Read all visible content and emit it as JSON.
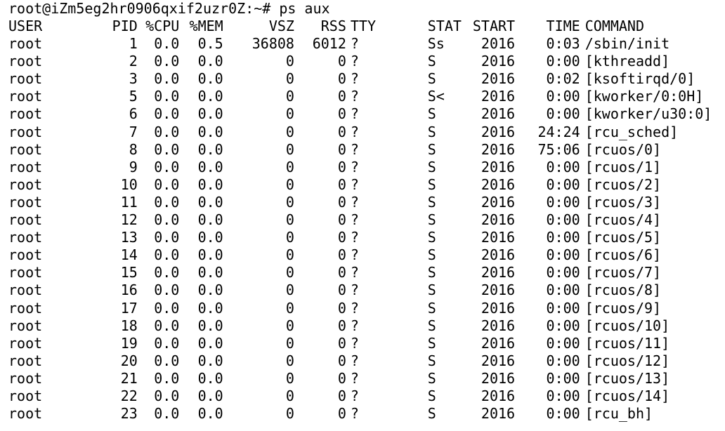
{
  "prompt": "root@iZm5eg2hr0906qxif2uzr0Z:~# ps aux",
  "columns": [
    "USER",
    "PID",
    "%CPU",
    "%MEM",
    "VSZ",
    "RSS",
    "TTY",
    "STAT",
    "START",
    "TIME",
    "COMMAND"
  ],
  "processes": [
    {
      "user": "root",
      "pid": "1",
      "cpu": "0.0",
      "mem": "0.5",
      "vsz": "36808",
      "rss": "6012",
      "tty": "?",
      "stat": "Ss",
      "start": "2016",
      "time": "0:03",
      "command": "/sbin/init"
    },
    {
      "user": "root",
      "pid": "2",
      "cpu": "0.0",
      "mem": "0.0",
      "vsz": "0",
      "rss": "0",
      "tty": "?",
      "stat": "S",
      "start": "2016",
      "time": "0:00",
      "command": "[kthreadd]"
    },
    {
      "user": "root",
      "pid": "3",
      "cpu": "0.0",
      "mem": "0.0",
      "vsz": "0",
      "rss": "0",
      "tty": "?",
      "stat": "S",
      "start": "2016",
      "time": "0:02",
      "command": "[ksoftirqd/0]"
    },
    {
      "user": "root",
      "pid": "5",
      "cpu": "0.0",
      "mem": "0.0",
      "vsz": "0",
      "rss": "0",
      "tty": "?",
      "stat": "S<",
      "start": "2016",
      "time": "0:00",
      "command": "[kworker/0:0H]"
    },
    {
      "user": "root",
      "pid": "6",
      "cpu": "0.0",
      "mem": "0.0",
      "vsz": "0",
      "rss": "0",
      "tty": "?",
      "stat": "S",
      "start": "2016",
      "time": "0:00",
      "command": "[kworker/u30:0]"
    },
    {
      "user": "root",
      "pid": "7",
      "cpu": "0.0",
      "mem": "0.0",
      "vsz": "0",
      "rss": "0",
      "tty": "?",
      "stat": "S",
      "start": "2016",
      "time": "24:24",
      "command": "[rcu_sched]"
    },
    {
      "user": "root",
      "pid": "8",
      "cpu": "0.0",
      "mem": "0.0",
      "vsz": "0",
      "rss": "0",
      "tty": "?",
      "stat": "S",
      "start": "2016",
      "time": "75:06",
      "command": "[rcuos/0]"
    },
    {
      "user": "root",
      "pid": "9",
      "cpu": "0.0",
      "mem": "0.0",
      "vsz": "0",
      "rss": "0",
      "tty": "?",
      "stat": "S",
      "start": "2016",
      "time": "0:00",
      "command": "[rcuos/1]"
    },
    {
      "user": "root",
      "pid": "10",
      "cpu": "0.0",
      "mem": "0.0",
      "vsz": "0",
      "rss": "0",
      "tty": "?",
      "stat": "S",
      "start": "2016",
      "time": "0:00",
      "command": "[rcuos/2]"
    },
    {
      "user": "root",
      "pid": "11",
      "cpu": "0.0",
      "mem": "0.0",
      "vsz": "0",
      "rss": "0",
      "tty": "?",
      "stat": "S",
      "start": "2016",
      "time": "0:00",
      "command": "[rcuos/3]"
    },
    {
      "user": "root",
      "pid": "12",
      "cpu": "0.0",
      "mem": "0.0",
      "vsz": "0",
      "rss": "0",
      "tty": "?",
      "stat": "S",
      "start": "2016",
      "time": "0:00",
      "command": "[rcuos/4]"
    },
    {
      "user": "root",
      "pid": "13",
      "cpu": "0.0",
      "mem": "0.0",
      "vsz": "0",
      "rss": "0",
      "tty": "?",
      "stat": "S",
      "start": "2016",
      "time": "0:00",
      "command": "[rcuos/5]"
    },
    {
      "user": "root",
      "pid": "14",
      "cpu": "0.0",
      "mem": "0.0",
      "vsz": "0",
      "rss": "0",
      "tty": "?",
      "stat": "S",
      "start": "2016",
      "time": "0:00",
      "command": "[rcuos/6]"
    },
    {
      "user": "root",
      "pid": "15",
      "cpu": "0.0",
      "mem": "0.0",
      "vsz": "0",
      "rss": "0",
      "tty": "?",
      "stat": "S",
      "start": "2016",
      "time": "0:00",
      "command": "[rcuos/7]"
    },
    {
      "user": "root",
      "pid": "16",
      "cpu": "0.0",
      "mem": "0.0",
      "vsz": "0",
      "rss": "0",
      "tty": "?",
      "stat": "S",
      "start": "2016",
      "time": "0:00",
      "command": "[rcuos/8]"
    },
    {
      "user": "root",
      "pid": "17",
      "cpu": "0.0",
      "mem": "0.0",
      "vsz": "0",
      "rss": "0",
      "tty": "?",
      "stat": "S",
      "start": "2016",
      "time": "0:00",
      "command": "[rcuos/9]"
    },
    {
      "user": "root",
      "pid": "18",
      "cpu": "0.0",
      "mem": "0.0",
      "vsz": "0",
      "rss": "0",
      "tty": "?",
      "stat": "S",
      "start": "2016",
      "time": "0:00",
      "command": "[rcuos/10]"
    },
    {
      "user": "root",
      "pid": "19",
      "cpu": "0.0",
      "mem": "0.0",
      "vsz": "0",
      "rss": "0",
      "tty": "?",
      "stat": "S",
      "start": "2016",
      "time": "0:00",
      "command": "[rcuos/11]"
    },
    {
      "user": "root",
      "pid": "20",
      "cpu": "0.0",
      "mem": "0.0",
      "vsz": "0",
      "rss": "0",
      "tty": "?",
      "stat": "S",
      "start": "2016",
      "time": "0:00",
      "command": "[rcuos/12]"
    },
    {
      "user": "root",
      "pid": "21",
      "cpu": "0.0",
      "mem": "0.0",
      "vsz": "0",
      "rss": "0",
      "tty": "?",
      "stat": "S",
      "start": "2016",
      "time": "0:00",
      "command": "[rcuos/13]"
    },
    {
      "user": "root",
      "pid": "22",
      "cpu": "0.0",
      "mem": "0.0",
      "vsz": "0",
      "rss": "0",
      "tty": "?",
      "stat": "S",
      "start": "2016",
      "time": "0:00",
      "command": "[rcuos/14]"
    },
    {
      "user": "root",
      "pid": "23",
      "cpu": "0.0",
      "mem": "0.0",
      "vsz": "0",
      "rss": "0",
      "tty": "?",
      "stat": "S",
      "start": "2016",
      "time": "0:00",
      "command": "[rcu_bh]"
    }
  ]
}
